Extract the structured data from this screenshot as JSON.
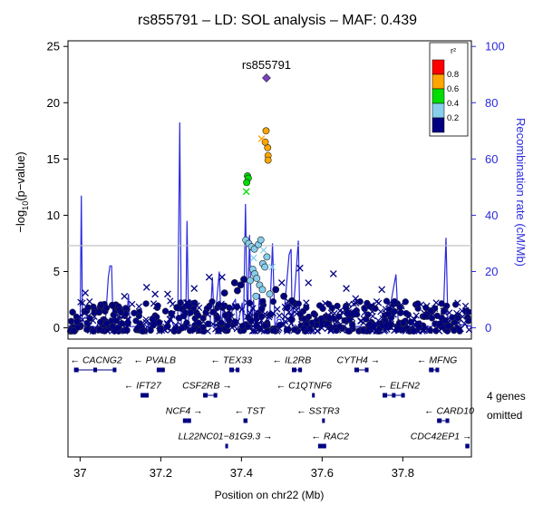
{
  "chart_data": {
    "type": "scatter",
    "title": "rs855791 – LD: SOL analysis – MAF: 0.439",
    "ylabel": "−log₁₀(p−value)",
    "ylabel_parts": {
      "pre": "−log",
      "sub": "10",
      "post": "(p−value)"
    },
    "y2label": "Recombination rate (cM/Mb)",
    "xlabel": "Position on chr22 (Mb)",
    "xlim": [
      36.97,
      37.97
    ],
    "ylim": [
      -1,
      25.5
    ],
    "y2lim": [
      -4,
      102
    ],
    "xticks": [
      "37",
      "37.2",
      "37.4",
      "37.6",
      "37.8"
    ],
    "xtick_values": [
      37.0,
      37.2,
      37.4,
      37.6,
      37.8
    ],
    "yticks": [
      "0",
      "5",
      "10",
      "15",
      "20",
      "25"
    ],
    "ytick_values": [
      0,
      5,
      10,
      15,
      20,
      25
    ],
    "y2ticks": [
      "0",
      "20",
      "40",
      "60",
      "80",
      "100"
    ],
    "y2tick_values": [
      0,
      20,
      40,
      60,
      80,
      100
    ],
    "significance_line": 7.3,
    "grid": false,
    "legend": {
      "title": "r²",
      "position": "top-right",
      "labels": [
        "0.8",
        "0.6",
        "0.4",
        "0.2"
      ],
      "colors": [
        "#ff0000",
        "#ffa500",
        "#00dd00",
        "#87ceeb",
        "#000080"
      ]
    },
    "lead_snp": {
      "label": "rs855791",
      "x": 37.462,
      "y": 22.2,
      "color": "#7b3fbf"
    },
    "points": [
      {
        "x": 37.461,
        "y": 17.5,
        "r2": "0.6-0.8",
        "shape": "circle"
      },
      {
        "x": 37.465,
        "y": 16.0,
        "r2": "0.6-0.8",
        "shape": "circle"
      },
      {
        "x": 37.466,
        "y": 15.3,
        "r2": "0.6-0.8",
        "shape": "circle"
      },
      {
        "x": 37.466,
        "y": 14.9,
        "r2": "0.6-0.8",
        "shape": "circle"
      },
      {
        "x": 37.459,
        "y": 16.5,
        "r2": "0.6-0.8",
        "shape": "circle"
      },
      {
        "x": 37.45,
        "y": 16.8,
        "r2": "0.6-0.8",
        "shape": "cross"
      },
      {
        "x": 37.415,
        "y": 13.5,
        "r2": "0.4-0.6",
        "shape": "circle"
      },
      {
        "x": 37.417,
        "y": 13.3,
        "r2": "0.4-0.6",
        "shape": "circle"
      },
      {
        "x": 37.413,
        "y": 12.9,
        "r2": "0.4-0.6",
        "shape": "circle"
      },
      {
        "x": 37.412,
        "y": 12.1,
        "r2": "0.4-0.6",
        "shape": "cross"
      },
      {
        "x": 37.411,
        "y": 7.8,
        "r2": "0.2-0.4",
        "shape": "circle"
      },
      {
        "x": 37.418,
        "y": 7.5,
        "r2": "0.2-0.4",
        "shape": "circle"
      },
      {
        "x": 37.425,
        "y": 7.2,
        "r2": "0.2-0.4",
        "shape": "circle"
      },
      {
        "x": 37.432,
        "y": 7.0,
        "r2": "0.2-0.4",
        "shape": "circle"
      },
      {
        "x": 37.442,
        "y": 7.4,
        "r2": "0.2-0.4",
        "shape": "circle"
      },
      {
        "x": 37.448,
        "y": 7.8,
        "r2": "0.2-0.4",
        "shape": "circle"
      },
      {
        "x": 37.453,
        "y": 5.7,
        "r2": "0.2-0.4",
        "shape": "circle"
      },
      {
        "x": 37.458,
        "y": 5.4,
        "r2": "0.2-0.4",
        "shape": "circle"
      },
      {
        "x": 37.463,
        "y": 6.3,
        "r2": "0.2-0.4",
        "shape": "circle"
      },
      {
        "x": 37.428,
        "y": 5.2,
        "r2": "0.2-0.4",
        "shape": "circle"
      },
      {
        "x": 37.433,
        "y": 4.8,
        "r2": "0.2-0.4",
        "shape": "circle"
      },
      {
        "x": 37.438,
        "y": 4.4,
        "r2": "0.2-0.4",
        "shape": "circle"
      },
      {
        "x": 37.422,
        "y": 4.2,
        "r2": "0.2-0.4",
        "shape": "circle"
      },
      {
        "x": 37.445,
        "y": 3.8,
        "r2": "0.2-0.4",
        "shape": "circle"
      },
      {
        "x": 37.452,
        "y": 3.4,
        "r2": "0.2-0.4",
        "shape": "circle"
      },
      {
        "x": 37.47,
        "y": 3.0,
        "r2": "0.2-0.4",
        "shape": "circle"
      },
      {
        "x": 37.43,
        "y": 6.2,
        "r2": "0.2-0.4",
        "shape": "cross"
      },
      {
        "x": 37.436,
        "y": 2.8,
        "r2": "0.2-0.4",
        "shape": "circle"
      },
      {
        "x": 37.476,
        "y": 5.4,
        "r2": "0.2-0.4",
        "shape": "cross"
      },
      {
        "x": 37.455,
        "y": 6.9,
        "r2": "0.2-0.4",
        "shape": "cross"
      },
      {
        "x": 37.32,
        "y": 4.5,
        "r2": "0-0.2",
        "shape": "cross"
      },
      {
        "x": 37.283,
        "y": 3.5,
        "r2": "0-0.2",
        "shape": "cross"
      },
      {
        "x": 37.352,
        "y": 4.5,
        "r2": "0-0.2",
        "shape": "cross"
      },
      {
        "x": 37.5,
        "y": 4.0,
        "r2": "0-0.2",
        "shape": "cross"
      },
      {
        "x": 37.545,
        "y": 5.3,
        "r2": "0-0.2",
        "shape": "cross"
      },
      {
        "x": 37.566,
        "y": 4.0,
        "r2": "0-0.2",
        "shape": "cross"
      },
      {
        "x": 37.628,
        "y": 4.8,
        "r2": "0-0.2",
        "shape": "cross"
      },
      {
        "x": 37.66,
        "y": 3.5,
        "r2": "0-0.2",
        "shape": "cross"
      },
      {
        "x": 37.683,
        "y": 2.6,
        "r2": "0-0.2",
        "shape": "cross"
      },
      {
        "x": 37.748,
        "y": 3.4,
        "r2": "0-0.2",
        "shape": "cross"
      },
      {
        "x": 37.165,
        "y": 3.6,
        "r2": "0-0.2",
        "shape": "cross"
      },
      {
        "x": 37.186,
        "y": 3.0,
        "r2": "0-0.2",
        "shape": "cross"
      },
      {
        "x": 37.11,
        "y": 2.8,
        "r2": "0-0.2",
        "shape": "cross"
      },
      {
        "x": 37.013,
        "y": 3.1,
        "r2": "0-0.2",
        "shape": "cross"
      },
      {
        "x": 37.217,
        "y": 3.0,
        "r2": "0-0.2",
        "shape": "cross"
      },
      {
        "x": 37.358,
        "y": 3.1,
        "r2": "0-0.2",
        "shape": "circle"
      },
      {
        "x": 37.383,
        "y": 4.0,
        "r2": "0-0.2",
        "shape": "circle"
      },
      {
        "x": 37.39,
        "y": 3.3,
        "r2": "0-0.2",
        "shape": "circle"
      },
      {
        "x": 37.398,
        "y": 3.8,
        "r2": "0-0.2",
        "shape": "circle"
      },
      {
        "x": 37.406,
        "y": 4.3,
        "r2": "0-0.2",
        "shape": "circle"
      },
      {
        "x": 37.485,
        "y": 3.4,
        "r2": "0-0.2",
        "shape": "circle"
      },
      {
        "x": 37.505,
        "y": 2.8,
        "r2": "0-0.2",
        "shape": "circle"
      },
      {
        "x": 37.525,
        "y": 2.4,
        "r2": "0-0.2",
        "shape": "circle"
      },
      {
        "x": 37.08,
        "y": 2.0,
        "r2": "0-0.2",
        "shape": "circle"
      },
      {
        "x": 37.047,
        "y": 1.4,
        "r2": "0-0.2",
        "shape": "circle"
      },
      {
        "x": 37.24,
        "y": 1.8,
        "r2": "0-0.2",
        "shape": "circle"
      }
    ],
    "background_snps": {
      "count": 720,
      "x_range": [
        36.975,
        37.965
      ],
      "y_range": [
        -0.3,
        2.4
      ],
      "color": "#000080"
    },
    "recombination": [
      [
        36.97,
        0.5
      ],
      [
        36.985,
        0.3
      ],
      [
        36.993,
        1.5
      ],
      [
        36.997,
        0.5
      ],
      [
        37.0,
        0.4
      ],
      [
        37.003,
        47.0
      ],
      [
        37.006,
        0.5
      ],
      [
        37.02,
        0.6
      ],
      [
        37.04,
        0.3
      ],
      [
        37.052,
        3.6
      ],
      [
        37.058,
        3.0
      ],
      [
        37.062,
        0.5
      ],
      [
        37.07,
        18.0
      ],
      [
        37.074,
        22.0
      ],
      [
        37.078,
        22.0
      ],
      [
        37.082,
        0.6
      ],
      [
        37.1,
        0.4
      ],
      [
        37.115,
        1.2
      ],
      [
        37.12,
        12.0
      ],
      [
        37.124,
        0.4
      ],
      [
        37.14,
        0.5
      ],
      [
        37.16,
        1.5
      ],
      [
        37.165,
        0.3
      ],
      [
        37.18,
        0.4
      ],
      [
        37.195,
        2.0
      ],
      [
        37.2,
        0.4
      ],
      [
        37.215,
        0.3
      ],
      [
        37.227,
        3.0
      ],
      [
        37.232,
        0.4
      ],
      [
        37.242,
        0.5
      ],
      [
        37.247,
        73.0
      ],
      [
        37.251,
        1.0
      ],
      [
        37.262,
        0.6
      ],
      [
        37.265,
        38.0
      ],
      [
        37.269,
        0.6
      ],
      [
        37.29,
        0.4
      ],
      [
        37.305,
        1.0
      ],
      [
        37.313,
        0.5
      ],
      [
        37.322,
        0.4
      ],
      [
        37.328,
        18.0
      ],
      [
        37.333,
        0.4
      ],
      [
        37.345,
        20.0
      ],
      [
        37.35,
        0.4
      ],
      [
        37.356,
        8.0
      ],
      [
        37.36,
        0.4
      ],
      [
        37.37,
        0.5
      ],
      [
        37.38,
        9.0
      ],
      [
        37.385,
        10.0
      ],
      [
        37.39,
        0.4
      ],
      [
        37.402,
        9.0
      ],
      [
        37.405,
        0.5
      ],
      [
        37.41,
        44.0
      ],
      [
        37.415,
        0.5
      ],
      [
        37.42,
        33.0
      ],
      [
        37.425,
        0.4
      ],
      [
        37.43,
        10.0
      ],
      [
        37.434,
        0.4
      ],
      [
        37.44,
        0.6
      ],
      [
        37.445,
        12.0
      ],
      [
        37.45,
        0.4
      ],
      [
        37.46,
        0.4
      ],
      [
        37.47,
        3.5
      ],
      [
        37.477,
        30.0
      ],
      [
        37.483,
        0.5
      ],
      [
        37.49,
        3.0
      ],
      [
        37.497,
        3.0
      ],
      [
        37.503,
        0.4
      ],
      [
        37.518,
        26.0
      ],
      [
        37.523,
        28.0
      ],
      [
        37.526,
        0.4
      ],
      [
        37.541,
        31.0
      ],
      [
        37.545,
        0.4
      ],
      [
        37.56,
        0.5
      ],
      [
        37.57,
        2.0
      ],
      [
        37.582,
        1.0
      ],
      [
        37.59,
        0.4
      ],
      [
        37.61,
        0.5
      ],
      [
        37.63,
        0.4
      ],
      [
        37.655,
        0.5
      ],
      [
        37.668,
        2.5
      ],
      [
        37.674,
        0.4
      ],
      [
        37.69,
        0.5
      ],
      [
        37.71,
        0.4
      ],
      [
        37.73,
        2.0
      ],
      [
        37.74,
        0.4
      ],
      [
        37.76,
        0.5
      ],
      [
        37.783,
        19.0
      ],
      [
        37.789,
        0.4
      ],
      [
        37.8,
        0.4
      ],
      [
        37.818,
        2.0
      ],
      [
        37.825,
        0.4
      ],
      [
        37.85,
        0.5
      ],
      [
        37.87,
        0.4
      ],
      [
        37.9,
        2.0
      ],
      [
        37.907,
        32.0
      ],
      [
        37.912,
        0.5
      ],
      [
        37.93,
        0.4
      ],
      [
        37.95,
        1.2
      ],
      [
        37.97,
        0.5
      ]
    ],
    "genes": [
      {
        "name": "CACNG2",
        "start": 36.985,
        "end": 37.09,
        "strand": "-",
        "row": 0,
        "label_x": 37.04
      },
      {
        "name": "PVALB",
        "start": 37.19,
        "end": 37.21,
        "strand": "-",
        "row": 0,
        "label_x": 37.185
      },
      {
        "name": "TEX33",
        "start": 37.37,
        "end": 37.395,
        "strand": "-",
        "row": 0,
        "label_x": 37.375
      },
      {
        "name": "IL2RB",
        "start": 37.525,
        "end": 37.55,
        "strand": "-",
        "row": 0,
        "label_x": 37.525
      },
      {
        "name": "CYTH4",
        "start": 37.68,
        "end": 37.715,
        "strand": "+",
        "row": 0,
        "label_x": 37.69
      },
      {
        "name": "MFNG",
        "start": 37.865,
        "end": 37.89,
        "strand": "-",
        "row": 0,
        "label_x": 37.885
      },
      {
        "name": "IFT27",
        "start": 37.15,
        "end": 37.17,
        "strand": "-",
        "row": 1,
        "label_x": 37.155
      },
      {
        "name": "CSF2RB",
        "start": 37.305,
        "end": 37.34,
        "strand": "+",
        "row": 1,
        "label_x": 37.315
      },
      {
        "name": "C1QTNF6",
        "start": 37.575,
        "end": 37.58,
        "strand": "-",
        "row": 1,
        "label_x": 37.555
      },
      {
        "name": "ELFN2",
        "start": 37.75,
        "end": 37.805,
        "strand": "-",
        "row": 1,
        "label_x": 37.79
      },
      {
        "name": "NCF4",
        "start": 37.255,
        "end": 37.275,
        "strand": "+",
        "row": 2,
        "label_x": 37.258
      },
      {
        "name": "TST",
        "start": 37.405,
        "end": 37.415,
        "strand": "-",
        "row": 2,
        "label_x": 37.42
      },
      {
        "name": "SSTR3",
        "start": 37.6,
        "end": 37.605,
        "strand": "-",
        "row": 2,
        "label_x": 37.59
      },
      {
        "name": "CARD10",
        "start": 37.885,
        "end": 37.915,
        "strand": "-",
        "row": 2,
        "label_x": 37.915
      },
      {
        "name": "LL22NC01−81G9.3",
        "start": 37.36,
        "end": 37.365,
        "strand": "+",
        "row": 3,
        "label_x": 37.36
      },
      {
        "name": "RAC2",
        "start": 37.59,
        "end": 37.61,
        "strand": "-",
        "row": 3,
        "label_x": 37.62
      },
      {
        "name": "CDC42EP1",
        "start": 37.955,
        "end": 37.965,
        "strand": "+",
        "row": 3,
        "label_x": 37.895
      }
    ],
    "genes_omitted_note": [
      "4 genes",
      "omitted"
    ]
  }
}
